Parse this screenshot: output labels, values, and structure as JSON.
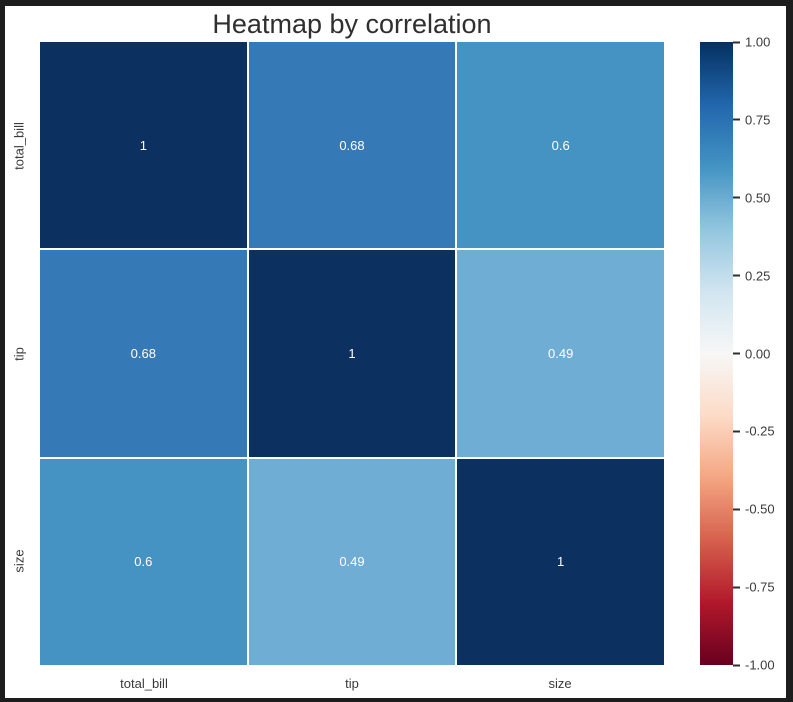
{
  "figure": {
    "background": "#ffffff",
    "frame_border_color": "#1d1d1d"
  },
  "chart_data": {
    "type": "heatmap",
    "title": "Heatmap by correlation",
    "x_categories": [
      "total_bill",
      "tip",
      "size"
    ],
    "y_categories": [
      "total_bill",
      "tip",
      "size"
    ],
    "matrix": [
      [
        1,
        0.68,
        0.6
      ],
      [
        0.68,
        1,
        0.49
      ],
      [
        0.6,
        0.49,
        1
      ]
    ],
    "cell_labels": [
      [
        "1",
        "0.68",
        "0.6"
      ],
      [
        "0.68",
        "1",
        "0.49"
      ],
      [
        "0.6",
        "0.49",
        "1"
      ]
    ],
    "cell_colors": [
      [
        "#0c3161",
        "#3579b6",
        "#4593c2"
      ],
      [
        "#3579b6",
        "#0c3161",
        "#6fadd4"
      ],
      [
        "#4593c2",
        "#6fadd4",
        "#0c3161"
      ]
    ],
    "annotation_text_color": "#ffffff",
    "gridline_color": "#ffffff",
    "colormap": "RdBu",
    "legend_position": "right",
    "colorbar": {
      "vmin": -1.0,
      "vmax": 1.0,
      "tick_labels": [
        "1.00",
        "0.75",
        "0.50",
        "0.25",
        "0.00",
        "-0.25",
        "-0.50",
        "-0.75",
        "-1.00"
      ],
      "gradient_stops": [
        {
          "pos": 0,
          "color": "#053061"
        },
        {
          "pos": 10,
          "color": "#2166ac"
        },
        {
          "pos": 20,
          "color": "#4393c3"
        },
        {
          "pos": 30,
          "color": "#92c5de"
        },
        {
          "pos": 40,
          "color": "#d1e5f0"
        },
        {
          "pos": 50,
          "color": "#f7f7f7"
        },
        {
          "pos": 60,
          "color": "#fddbc7"
        },
        {
          "pos": 70,
          "color": "#f4a582"
        },
        {
          "pos": 80,
          "color": "#d6604d"
        },
        {
          "pos": 90,
          "color": "#b2182b"
        },
        {
          "pos": 100,
          "color": "#67001f"
        }
      ]
    }
  }
}
